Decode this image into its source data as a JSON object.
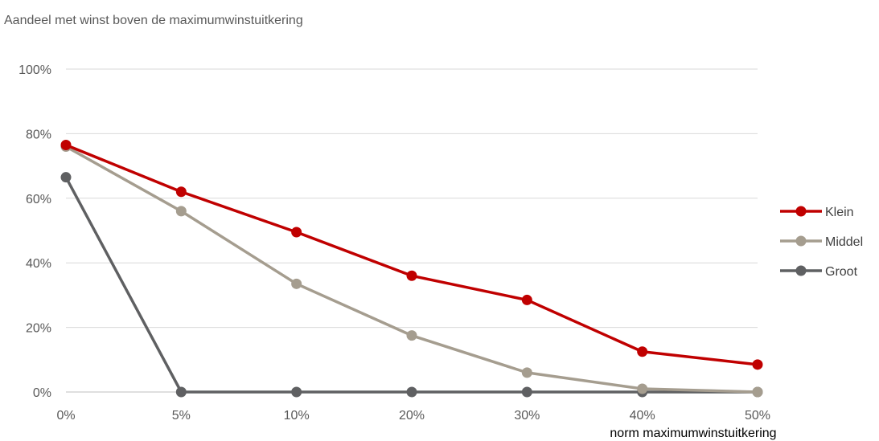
{
  "chart_data": {
    "type": "line",
    "title": "Aandeel met winst boven de maximumwinstuitkering",
    "xlabel": "norm maximumwinstuitkering",
    "ylabel": "",
    "categories": [
      "0%",
      "5%",
      "10%",
      "20%",
      "30%",
      "40%",
      "50%"
    ],
    "y_ticks": [
      "0%",
      "20%",
      "40%",
      "60%",
      "80%",
      "100%"
    ],
    "ylim": [
      0,
      100
    ],
    "grid": true,
    "legend_position": "right",
    "series": [
      {
        "name": "Klein",
        "color": "#C00000",
        "values": [
          76.5,
          62,
          49.5,
          36,
          28.5,
          12.5,
          8.5
        ]
      },
      {
        "name": "Middel",
        "color": "#A59D8F",
        "values": [
          76,
          56,
          33.5,
          17.5,
          6,
          1,
          0
        ]
      },
      {
        "name": "Groot",
        "color": "#5F6062",
        "values": [
          66.5,
          0,
          0,
          0,
          0,
          0,
          0
        ]
      }
    ]
  }
}
